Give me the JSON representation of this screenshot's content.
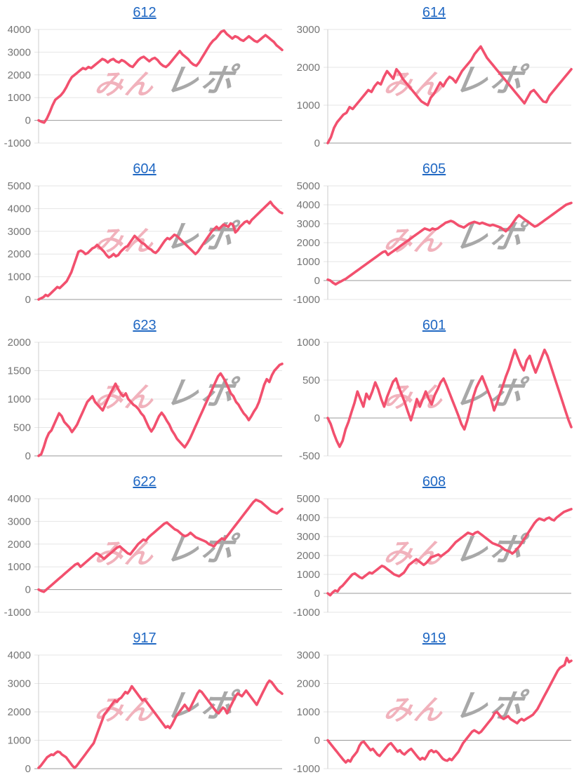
{
  "page": {
    "background": "#ffffff"
  },
  "colors": {
    "line": "#f2506e",
    "gridline": "#e6e6e6",
    "baseline": "#999999",
    "axis_line": "#cccccc",
    "axis_label": "#757575",
    "title_link": "#2068c3",
    "watermark_pink": "#f1b2bc",
    "watermark_gray": "#a8a8a8"
  },
  "watermark": {
    "pink_text": "みん",
    "gray_text": "レポ"
  },
  "chart_data": [
    {
      "type": "line",
      "title": "612",
      "xlabel": "",
      "ylabel": "",
      "legend": "none",
      "grid": true,
      "ylim": [
        -1000,
        4000
      ],
      "ytick_step": 1000,
      "yticks": [
        4000,
        3000,
        2000,
        1000,
        0,
        -1000
      ],
      "values": [
        0,
        -60,
        -100,
        80,
        350,
        650,
        900,
        1000,
        1100,
        1250,
        1450,
        1700,
        1900,
        2000,
        2100,
        2200,
        2300,
        2250,
        2350,
        2300,
        2400,
        2500,
        2600,
        2700,
        2650,
        2550,
        2650,
        2700,
        2600,
        2550,
        2650,
        2600,
        2500,
        2400,
        2350,
        2500,
        2650,
        2750,
        2800,
        2700,
        2600,
        2700,
        2750,
        2650,
        2500,
        2400,
        2350,
        2450,
        2600,
        2750,
        2900,
        3050,
        2900,
        2800,
        2700,
        2550,
        2450,
        2400,
        2550,
        2750,
        2950,
        3150,
        3350,
        3500,
        3600,
        3750,
        3900,
        3950,
        3800,
        3700,
        3600,
        3700,
        3650,
        3550,
        3500,
        3600,
        3700,
        3600,
        3500,
        3450,
        3550,
        3650,
        3750,
        3650,
        3550,
        3450,
        3300,
        3200,
        3100
      ]
    },
    {
      "type": "line",
      "title": "614",
      "xlabel": "",
      "ylabel": "",
      "legend": "none",
      "grid": true,
      "ylim": [
        0,
        3000
      ],
      "ytick_step": 1000,
      "yticks": [
        3000,
        2000,
        1000,
        0
      ],
      "values": [
        0,
        150,
        400,
        550,
        650,
        750,
        800,
        950,
        900,
        1000,
        1100,
        1200,
        1300,
        1400,
        1350,
        1500,
        1600,
        1550,
        1750,
        1900,
        1800,
        1700,
        1950,
        1850,
        1700,
        1600,
        1500,
        1400,
        1300,
        1200,
        1100,
        1050,
        1000,
        1200,
        1300,
        1450,
        1600,
        1500,
        1650,
        1750,
        1700,
        1600,
        1750,
        1900,
        2000,
        2100,
        2200,
        2350,
        2450,
        2550,
        2400,
        2250,
        2150,
        2050,
        1950,
        1850,
        1750,
        1650,
        1550,
        1450,
        1350,
        1250,
        1150,
        1050,
        1200,
        1350,
        1400,
        1300,
        1200,
        1100,
        1080,
        1250,
        1350,
        1450,
        1550,
        1650,
        1750,
        1850,
        1950
      ]
    },
    {
      "type": "line",
      "title": "604",
      "xlabel": "",
      "ylabel": "",
      "legend": "none",
      "grid": true,
      "ylim": [
        0,
        5000
      ],
      "ytick_step": 1000,
      "yticks": [
        5000,
        4000,
        3000,
        2000,
        1000,
        0
      ],
      "values": [
        0,
        50,
        100,
        200,
        150,
        250,
        350,
        450,
        550,
        500,
        600,
        700,
        800,
        1000,
        1200,
        1500,
        1800,
        2100,
        2150,
        2100,
        2000,
        2050,
        2150,
        2250,
        2300,
        2400,
        2300,
        2200,
        2100,
        1950,
        1850,
        1900,
        2000,
        1900,
        1950,
        2100,
        2200,
        2300,
        2350,
        2500,
        2650,
        2800,
        2700,
        2600,
        2500,
        2450,
        2350,
        2250,
        2200,
        2100,
        2050,
        2150,
        2300,
        2450,
        2600,
        2700,
        2650,
        2750,
        2850,
        2800,
        2700,
        2600,
        2500,
        2400,
        2300,
        2200,
        2100,
        2000,
        2100,
        2250,
        2400,
        2550,
        2700,
        2850,
        3000,
        3100,
        3200,
        3100,
        3200,
        3300,
        3250,
        3200,
        3350,
        3300,
        2950,
        3050,
        3200,
        3300,
        3400,
        3450,
        3350,
        3500,
        3600,
        3700,
        3800,
        3900,
        4000,
        4100,
        4200,
        4300,
        4150,
        4050,
        3950,
        3850,
        3800
      ]
    },
    {
      "type": "line",
      "title": "605",
      "xlabel": "",
      "ylabel": "",
      "legend": "none",
      "grid": true,
      "ylim": [
        -1000,
        5000
      ],
      "ytick_step": 1000,
      "yticks": [
        5000,
        4000,
        3000,
        2000,
        1000,
        0,
        -1000
      ],
      "values": [
        50,
        0,
        -120,
        -200,
        -120,
        -50,
        30,
        100,
        200,
        300,
        400,
        500,
        600,
        700,
        800,
        900,
        1000,
        1100,
        1200,
        1300,
        1400,
        1500,
        1550,
        1350,
        1450,
        1550,
        1650,
        1750,
        1850,
        1950,
        2050,
        2150,
        2250,
        2350,
        2450,
        2550,
        2650,
        2750,
        2700,
        2650,
        2750,
        2700,
        2750,
        2850,
        2950,
        3050,
        3100,
        3150,
        3100,
        3000,
        2900,
        2850,
        2800,
        2900,
        3000,
        3050,
        3100,
        3050,
        3000,
        3050,
        3000,
        2950,
        2900,
        2950,
        2900,
        2850,
        2800,
        2700,
        2600,
        2750,
        2900,
        3100,
        3300,
        3450,
        3350,
        3250,
        3150,
        3050,
        2950,
        2850,
        2900,
        3000,
        3100,
        3200,
        3300,
        3400,
        3500,
        3600,
        3700,
        3800,
        3900,
        4000,
        4050,
        4100
      ]
    },
    {
      "type": "line",
      "title": "623",
      "xlabel": "",
      "ylabel": "",
      "legend": "none",
      "grid": true,
      "ylim": [
        0,
        2000
      ],
      "ytick_step": 500,
      "yticks": [
        2000,
        1500,
        1000,
        500,
        0
      ],
      "values": [
        0,
        30,
        150,
        300,
        400,
        450,
        550,
        650,
        750,
        700,
        600,
        550,
        500,
        420,
        480,
        550,
        650,
        750,
        850,
        950,
        1000,
        1050,
        950,
        900,
        850,
        800,
        900,
        1000,
        1100,
        1180,
        1270,
        1180,
        1100,
        1050,
        1100,
        1000,
        950,
        900,
        870,
        820,
        750,
        700,
        600,
        500,
        430,
        500,
        600,
        700,
        760,
        700,
        620,
        550,
        450,
        380,
        300,
        250,
        200,
        150,
        220,
        300,
        400,
        500,
        600,
        700,
        800,
        900,
        1000,
        1100,
        1200,
        1300,
        1400,
        1450,
        1380,
        1300,
        1200,
        1100,
        1050,
        950,
        900,
        820,
        750,
        700,
        630,
        700,
        780,
        850,
        950,
        1100,
        1250,
        1350,
        1300,
        1420,
        1500,
        1550,
        1600,
        1620
      ]
    },
    {
      "type": "line",
      "title": "601",
      "xlabel": "",
      "ylabel": "",
      "legend": "none",
      "grid": true,
      "ylim": [
        -500,
        1000
      ],
      "ytick_step": 500,
      "yticks": [
        1000,
        500,
        0,
        -500
      ],
      "values": [
        0,
        -80,
        -200,
        -300,
        -380,
        -300,
        -150,
        -50,
        80,
        200,
        350,
        250,
        150,
        320,
        250,
        350,
        470,
        380,
        250,
        150,
        280,
        380,
        480,
        520,
        400,
        300,
        200,
        80,
        -30,
        100,
        250,
        150,
        250,
        350,
        250,
        180,
        300,
        380,
        470,
        520,
        430,
        330,
        230,
        130,
        30,
        -80,
        -150,
        -30,
        120,
        280,
        400,
        480,
        550,
        450,
        350,
        250,
        100,
        200,
        320,
        430,
        550,
        650,
        780,
        900,
        800,
        700,
        630,
        760,
        820,
        700,
        600,
        700,
        800,
        900,
        820,
        700,
        580,
        460,
        340,
        220,
        100,
        -20,
        -120
      ]
    },
    {
      "type": "line",
      "title": "622",
      "xlabel": "",
      "ylabel": "",
      "legend": "none",
      "grid": true,
      "ylim": [
        -1000,
        4000
      ],
      "ytick_step": 1000,
      "yticks": [
        4000,
        3000,
        2000,
        1000,
        0,
        -1000
      ],
      "values": [
        0,
        -60,
        -100,
        0,
        100,
        200,
        300,
        400,
        500,
        600,
        700,
        800,
        900,
        1000,
        1100,
        1150,
        1000,
        1100,
        1200,
        1300,
        1400,
        1500,
        1600,
        1550,
        1450,
        1350,
        1450,
        1550,
        1650,
        1750,
        1850,
        1900,
        1800,
        1700,
        1600,
        1550,
        1700,
        1850,
        2000,
        2100,
        2200,
        2150,
        2300,
        2400,
        2500,
        2600,
        2700,
        2800,
        2900,
        2950,
        2850,
        2750,
        2650,
        2600,
        2500,
        2400,
        2350,
        2400,
        2500,
        2400,
        2300,
        2250,
        2200,
        2150,
        2100,
        2000,
        1950,
        1900,
        2050,
        2150,
        2250,
        2200,
        2350,
        2500,
        2650,
        2800,
        2950,
        3100,
        3250,
        3400,
        3550,
        3700,
        3850,
        3950,
        3900,
        3850,
        3750,
        3650,
        3550,
        3450,
        3400,
        3350,
        3450,
        3550
      ]
    },
    {
      "type": "line",
      "title": "608",
      "xlabel": "",
      "ylabel": "",
      "legend": "none",
      "grid": true,
      "ylim": [
        -1000,
        5000
      ],
      "ytick_step": 1000,
      "yticks": [
        5000,
        4000,
        3000,
        2000,
        1000,
        0,
        -1000
      ],
      "values": [
        0,
        -100,
        50,
        150,
        100,
        300,
        400,
        550,
        700,
        850,
        1000,
        1050,
        950,
        850,
        800,
        900,
        1000,
        1100,
        1050,
        1150,
        1250,
        1350,
        1450,
        1400,
        1300,
        1200,
        1100,
        1000,
        950,
        900,
        1000,
        1100,
        1300,
        1500,
        1600,
        1700,
        1800,
        1700,
        1600,
        1500,
        1600,
        1750,
        1900,
        1950,
        2000,
        2050,
        1950,
        2050,
        2150,
        2250,
        2400,
        2550,
        2700,
        2800,
        2900,
        3000,
        3100,
        3200,
        3150,
        3100,
        3200,
        3250,
        3150,
        3050,
        2950,
        2850,
        2750,
        2650,
        2600,
        2550,
        2500,
        2400,
        2300,
        2250,
        2200,
        2100,
        2200,
        2350,
        2500,
        2700,
        2900,
        3100,
        3300,
        3500,
        3700,
        3850,
        3950,
        3900,
        3850,
        3950,
        4000,
        3900,
        3850,
        4000,
        4100,
        4200,
        4300,
        4350,
        4400,
        4450
      ]
    },
    {
      "type": "line",
      "title": "917",
      "xlabel": "",
      "ylabel": "",
      "legend": "none",
      "grid": true,
      "ylim": [
        0,
        4000
      ],
      "ytick_step": 1000,
      "yticks": [
        4000,
        3000,
        2000,
        1000,
        0
      ],
      "values": [
        30,
        100,
        200,
        300,
        400,
        450,
        500,
        480,
        550,
        600,
        580,
        500,
        450,
        400,
        300,
        200,
        100,
        30,
        100,
        200,
        300,
        400,
        500,
        600,
        700,
        800,
        900,
        1100,
        1300,
        1500,
        1700,
        1900,
        2000,
        2100,
        2200,
        2300,
        2400,
        2350,
        2450,
        2500,
        2600,
        2700,
        2650,
        2750,
        2900,
        2800,
        2700,
        2600,
        2500,
        2400,
        2450,
        2350,
        2250,
        2150,
        2050,
        1950,
        1850,
        1750,
        1650,
        1550,
        1450,
        1500,
        1430,
        1550,
        1700,
        1850,
        1950,
        2050,
        2150,
        2250,
        2150,
        2050,
        2200,
        2350,
        2500,
        2650,
        2750,
        2700,
        2600,
        2500,
        2400,
        2300,
        2200,
        2100,
        2000,
        1950,
        2050,
        2150,
        2100,
        1950,
        2100,
        2250,
        2400,
        2550,
        2650,
        2600,
        2550,
        2650,
        2750,
        2650,
        2550,
        2450,
        2350,
        2250,
        2400,
        2550,
        2700,
        2850,
        3000,
        3100,
        3050,
        2950,
        2850,
        2750,
        2700,
        2640
      ]
    },
    {
      "type": "line",
      "title": "919",
      "xlabel": "",
      "ylabel": "",
      "legend": "none",
      "grid": true,
      "ylim": [
        -1000,
        3000
      ],
      "ytick_step": 1000,
      "yticks": [
        3000,
        2000,
        1000,
        0,
        -1000
      ],
      "values": [
        0,
        -100,
        -200,
        -300,
        -400,
        -500,
        -600,
        -700,
        -780,
        -700,
        -750,
        -600,
        -500,
        -400,
        -200,
        -80,
        -50,
        -150,
        -250,
        -350,
        -300,
        -400,
        -500,
        -550,
        -450,
        -350,
        -250,
        -150,
        -100,
        -200,
        -300,
        -400,
        -350,
        -450,
        -500,
        -420,
        -350,
        -300,
        -400,
        -500,
        -600,
        -680,
        -620,
        -670,
        -550,
        -400,
        -350,
        -420,
        -380,
        -450,
        -550,
        -650,
        -700,
        -720,
        -650,
        -700,
        -600,
        -500,
        -400,
        -250,
        -100,
        0,
        100,
        200,
        300,
        350,
        300,
        250,
        300,
        400,
        500,
        600,
        700,
        800,
        950,
        1000,
        900,
        800,
        750,
        800,
        850,
        750,
        700,
        650,
        600,
        700,
        750,
        700,
        750,
        800,
        850,
        900,
        1000,
        1100,
        1250,
        1400,
        1550,
        1700,
        1850,
        2000,
        2150,
        2300,
        2450,
        2550,
        2600,
        2650,
        2900,
        2750,
        2800
      ]
    }
  ]
}
